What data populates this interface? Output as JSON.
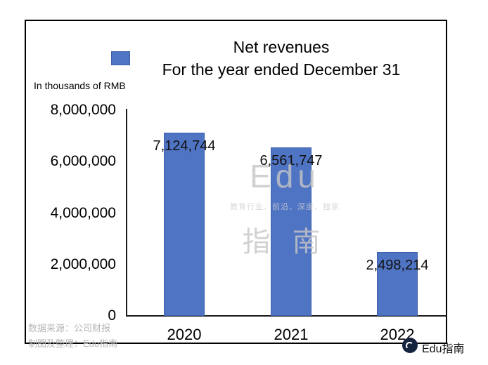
{
  "chart_data": {
    "type": "bar",
    "title": "Net revenues",
    "subtitle": "For the year ended December 31",
    "units_label": "In thousands of RMB",
    "categories": [
      "2020",
      "2021",
      "2022"
    ],
    "values": [
      7124744,
      6561747,
      2498214
    ],
    "value_labels": [
      "7,124,744",
      "6,561,747",
      "2,498,214"
    ],
    "ylim": [
      0,
      8000000
    ],
    "ytick_labels": [
      "8,000,000",
      "6,000,000",
      "4,000,000",
      "2,000,000",
      "0"
    ],
    "grid": false,
    "legend_position": "top-center-left-of-subtitle",
    "bar_color": "#4f74c4"
  },
  "watermark": {
    "brand_en": "Edu",
    "tagline": "教育行业、前沿、深度、独家",
    "brand_cn": "指 南"
  },
  "footer": {
    "source": "数据来源：公司财报",
    "credit": "制图及整理：Edu指南"
  },
  "badge": {
    "label": "Edu指南"
  }
}
